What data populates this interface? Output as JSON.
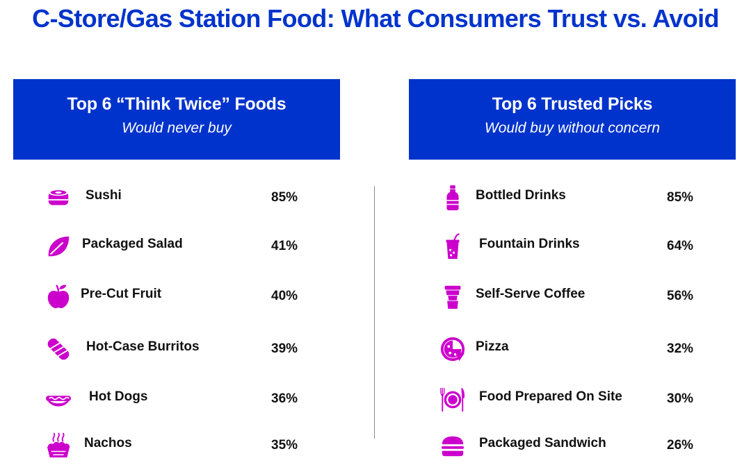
{
  "title": "C-Store/Gas Station Food: What Consumers Trust vs. Avoid",
  "colors": {
    "brand_blue": "#0033cc",
    "icon_magenta": "#cc00cc",
    "text": "#111111"
  },
  "panels": {
    "left": {
      "title": "Top 6 “Think Twice” Foods",
      "subtitle": "Would never buy"
    },
    "right": {
      "title": "Top 6 Trusted Picks",
      "subtitle": "Would buy without concern"
    }
  },
  "chart_data": [
    {
      "type": "table",
      "title": "Top 6 “Think Twice” Foods",
      "subtitle": "Would never buy",
      "categories": [
        "Sushi",
        "Packaged Salad",
        "Pre-Cut Fruit",
        "Hot-Case Burritos",
        "Hot Dogs",
        "Nachos"
      ],
      "values": [
        "85%",
        "41%",
        "40%",
        "39%",
        "36%",
        "35%"
      ],
      "icons": [
        "sushi-icon",
        "leaf-icon",
        "apple-icon",
        "burrito-icon",
        "hot-dog-icon",
        "nachos-icon"
      ]
    },
    {
      "type": "table",
      "title": "Top 6 Trusted Picks",
      "subtitle": "Would buy without concern",
      "categories": [
        "Bottled Drinks",
        "Fountain Drinks",
        "Self-Serve Coffee",
        "Pizza",
        "Food Prepared On Site",
        "Packaged Sandwich"
      ],
      "values": [
        "85%",
        "64%",
        "56%",
        "32%",
        "30%",
        "26%"
      ],
      "icons": [
        "bottle-icon",
        "fountain-drink-icon",
        "coffee-cup-icon",
        "pizza-icon",
        "plate-cutlery-icon",
        "sandwich-icon"
      ]
    }
  ]
}
